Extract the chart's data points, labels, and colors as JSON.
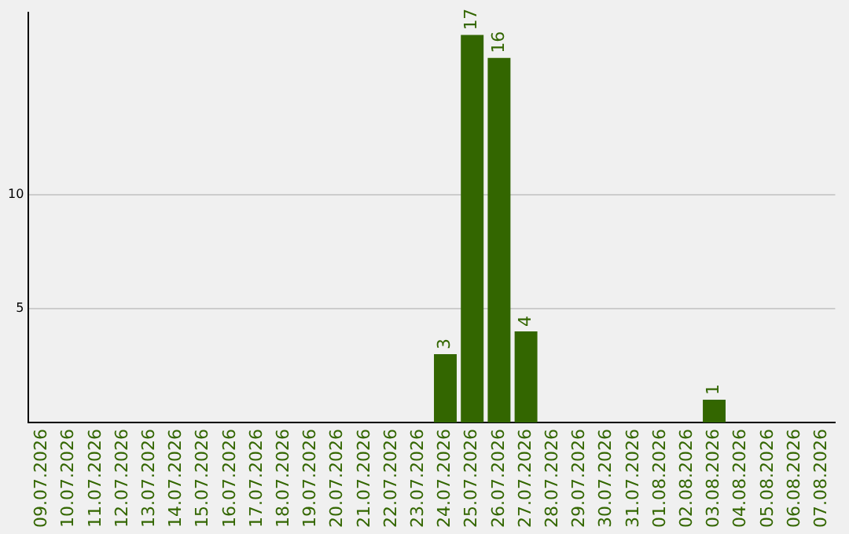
{
  "chart_data": {
    "type": "bar",
    "categories": [
      "09.07.2026",
      "10.07.2026",
      "11.07.2026",
      "12.07.2026",
      "13.07.2026",
      "14.07.2026",
      "15.07.2026",
      "16.07.2026",
      "17.07.2026",
      "18.07.2026",
      "19.07.2026",
      "20.07.2026",
      "21.07.2026",
      "22.07.2026",
      "23.07.2026",
      "24.07.2026",
      "25.07.2026",
      "26.07.2026",
      "27.07.2026",
      "28.07.2026",
      "29.07.2026",
      "30.07.2026",
      "31.07.2026",
      "01.08.2026",
      "02.08.2026",
      "03.08.2026",
      "04.08.2026",
      "05.08.2026",
      "06.08.2026",
      "07.08.2026"
    ],
    "values": [
      0,
      0,
      0,
      0,
      0,
      0,
      0,
      0,
      0,
      0,
      0,
      0,
      0,
      0,
      0,
      3,
      17,
      16,
      4,
      0,
      0,
      0,
      0,
      0,
      0,
      1,
      0,
      0,
      0,
      0
    ],
    "value_labels": [
      null,
      null,
      null,
      null,
      null,
      null,
      null,
      null,
      null,
      null,
      null,
      null,
      null,
      null,
      null,
      "3",
      "17",
      "16",
      "4",
      null,
      null,
      null,
      null,
      null,
      null,
      "1",
      null,
      null,
      null,
      null
    ],
    "color": "#336600",
    "ylim": [
      0,
      18
    ],
    "yticks": [
      5,
      10
    ],
    "grid": "y",
    "legend": false
  }
}
